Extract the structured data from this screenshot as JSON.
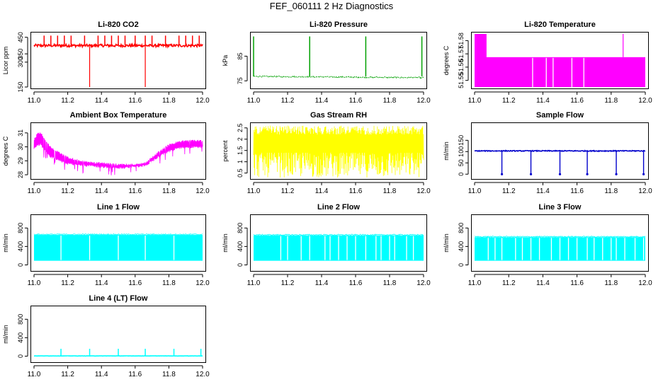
{
  "figure": {
    "title": "FEF_060111  2 Hz Diagnostics"
  },
  "chart_data": [
    {
      "type": "line",
      "title": "Li-820 CO2",
      "ylabel": "Licor ppm",
      "xlim": [
        11.0,
        12.0
      ],
      "ylim": [
        150,
        470
      ],
      "xticks": [
        11.0,
        11.2,
        11.4,
        11.6,
        11.8,
        12.0
      ],
      "yticks": [
        150,
        300,
        350,
        450
      ],
      "color": "#ff0000",
      "pattern": "spikes",
      "series": [
        {
          "name": "CO2",
          "baseline": 400,
          "noise": 8,
          "spikes_up": [
            11.06,
            11.1,
            11.14,
            11.18,
            11.22,
            11.3,
            11.38,
            11.42,
            11.46,
            11.5,
            11.54,
            11.6,
            11.66,
            11.7,
            11.78,
            11.86,
            11.9,
            11.94,
            11.98
          ],
          "spike_up_to": 460,
          "spikes_down": [
            11.33,
            11.66
          ],
          "spike_down_to": 150
        }
      ]
    },
    {
      "type": "line",
      "title": "Li-820 Pressure",
      "ylabel": "kPa",
      "xlim": [
        11.0,
        12.0
      ],
      "ylim": [
        72.5,
        94
      ],
      "xticks": [
        11.0,
        11.2,
        11.4,
        11.6,
        11.8,
        12.0
      ],
      "yticks": [
        75,
        85
      ],
      "color": "#00a000",
      "pattern": "pulses",
      "series": [
        {
          "name": "Pressure",
          "baseline": 76.8,
          "noise": 0.25,
          "end_value": 76.3,
          "pulses": [
            11.0,
            11.33,
            11.66,
            11.99
          ],
          "pulse_to": 93
        }
      ]
    },
    {
      "type": "area",
      "title": "Li-820 Temperature",
      "ylabel": "degrees C",
      "xlim": [
        11.0,
        12.0
      ],
      "ylim": [
        51.545,
        51.585
      ],
      "xticks": [
        11.0,
        11.2,
        11.4,
        11.6,
        11.8,
        12.0
      ],
      "yticks": [
        51.55,
        51.56,
        51.57,
        51.58
      ],
      "color": "#ff00ff",
      "pattern": "band",
      "series": [
        {
          "name": "Temperature",
          "low": 51.545,
          "high": 51.5675,
          "high_segment": {
            "from": 11.0,
            "to": 11.07,
            "value": 51.585
          },
          "spike": {
            "x": 11.87,
            "value": 51.585
          },
          "gaps": [
            11.34,
            11.42,
            11.46,
            11.57,
            11.64
          ]
        }
      ]
    },
    {
      "type": "line",
      "title": "Ambient Box Temperature",
      "ylabel": "degrees C",
      "xlim": [
        11.0,
        12.0
      ],
      "ylim": [
        27.8,
        31.6
      ],
      "xticks": [
        11.0,
        11.2,
        11.4,
        11.6,
        11.8,
        12.0
      ],
      "yticks": [
        28,
        29,
        30,
        31
      ],
      "color": "#ff00ff",
      "pattern": "envelope",
      "series": [
        {
          "name": "Box Temp",
          "x": [
            11.0,
            11.02,
            11.04,
            11.06,
            11.1,
            11.2,
            11.3,
            11.4,
            11.5,
            11.6,
            11.66,
            11.7,
            11.75,
            11.8,
            11.85,
            11.9,
            12.0
          ],
          "upper": [
            30.6,
            31.0,
            31.1,
            30.7,
            30.0,
            29.3,
            29.0,
            28.9,
            28.8,
            28.8,
            28.9,
            29.3,
            29.8,
            30.2,
            30.4,
            30.5,
            30.5
          ],
          "lower": [
            29.8,
            30.0,
            30.1,
            29.7,
            29.2,
            28.7,
            28.6,
            28.5,
            28.4,
            28.5,
            28.6,
            28.9,
            29.3,
            29.6,
            29.8,
            29.9,
            29.9
          ]
        }
      ]
    },
    {
      "type": "line",
      "title": "Gas Stream RH",
      "ylabel": "percent",
      "xlim": [
        11.0,
        12.0
      ],
      "ylim": [
        0.3,
        2.65
      ],
      "xticks": [
        11.0,
        11.2,
        11.4,
        11.6,
        11.8,
        12.0
      ],
      "yticks": [
        0.5,
        1.0,
        1.5,
        2.0,
        2.5
      ],
      "color": "#ffff00",
      "pattern": "noise_band",
      "series": [
        {
          "name": "RH",
          "low": 0.3,
          "high": 2.6
        }
      ]
    },
    {
      "type": "line",
      "title": "Sample Flow",
      "ylabel": "ml/min",
      "xlim": [
        11.0,
        12.0
      ],
      "ylim": [
        -15,
        220
      ],
      "xticks": [
        11.0,
        11.2,
        11.4,
        11.6,
        11.8,
        12.0
      ],
      "yticks": [
        0,
        50,
        100,
        150
      ],
      "color": "#0000cc",
      "pattern": "dips",
      "series": [
        {
          "name": "Sample",
          "baseline": 103,
          "noise": 2,
          "dips": [
            11.16,
            11.33,
            11.5,
            11.66,
            11.83,
            11.99
          ],
          "dip_to": 0
        }
      ]
    },
    {
      "type": "line",
      "title": "Line 1 Flow",
      "ylabel": "ml/min",
      "xlim": [
        11.0,
        12.0
      ],
      "ylim": [
        -100,
        1050
      ],
      "xticks": [
        11.0,
        11.2,
        11.4,
        11.6,
        11.8,
        12.0
      ],
      "yticks": [
        0,
        400,
        800
      ],
      "color": "#00ffff",
      "pattern": "blocks",
      "series": [
        {
          "name": "Line 1",
          "low": 90,
          "high": 650,
          "gaps": [
            11.16,
            11.33,
            11.5,
            11.66,
            11.83
          ]
        }
      ]
    },
    {
      "type": "line",
      "title": "Line 2 Flow",
      "ylabel": "ml/min",
      "xlim": [
        11.0,
        12.0
      ],
      "ylim": [
        -100,
        1050
      ],
      "xticks": [
        11.0,
        11.2,
        11.4,
        11.6,
        11.8,
        12.0
      ],
      "yticks": [
        0,
        400,
        800
      ],
      "color": "#00ffff",
      "pattern": "blocks",
      "series": [
        {
          "name": "Line 2",
          "low": 90,
          "high": 640,
          "gaps": [
            11.16,
            11.2,
            11.28,
            11.33,
            11.42,
            11.45,
            11.5,
            11.55,
            11.6,
            11.66,
            11.72,
            11.75,
            11.8,
            11.83,
            11.9,
            11.94
          ]
        }
      ]
    },
    {
      "type": "line",
      "title": "Line 3 Flow",
      "ylabel": "ml/min",
      "xlim": [
        11.0,
        12.0
      ],
      "ylim": [
        -100,
        1050
      ],
      "xticks": [
        11.0,
        11.2,
        11.4,
        11.6,
        11.8,
        12.0
      ],
      "yticks": [
        0,
        400,
        800
      ],
      "color": "#00ffff",
      "pattern": "blocks",
      "series": [
        {
          "name": "Line 3",
          "low": 90,
          "high": 600,
          "gaps": [
            11.08,
            11.12,
            11.16,
            11.24,
            11.28,
            11.33,
            11.38,
            11.45,
            11.5,
            11.55,
            11.6,
            11.66,
            11.7,
            11.75,
            11.8,
            11.83,
            11.88,
            11.94,
            11.99
          ]
        }
      ]
    },
    {
      "type": "line",
      "title": "Line 4 (LT) Flow",
      "ylabel": "ml/min",
      "xlim": [
        11.0,
        12.0
      ],
      "ylim": [
        -100,
        1050
      ],
      "xticks": [
        11.0,
        11.2,
        11.4,
        11.6,
        11.8,
        12.0
      ],
      "yticks": [
        0,
        400,
        800
      ],
      "color": "#00ffff",
      "pattern": "spikes",
      "series": [
        {
          "name": "Line 4",
          "baseline": 5,
          "noise": 2,
          "spikes_up": [
            11.16,
            11.33,
            11.5,
            11.66,
            11.83,
            11.99
          ],
          "spike_up_to": 160,
          "spikes_down": [],
          "spike_down_to": 0
        }
      ]
    }
  ]
}
